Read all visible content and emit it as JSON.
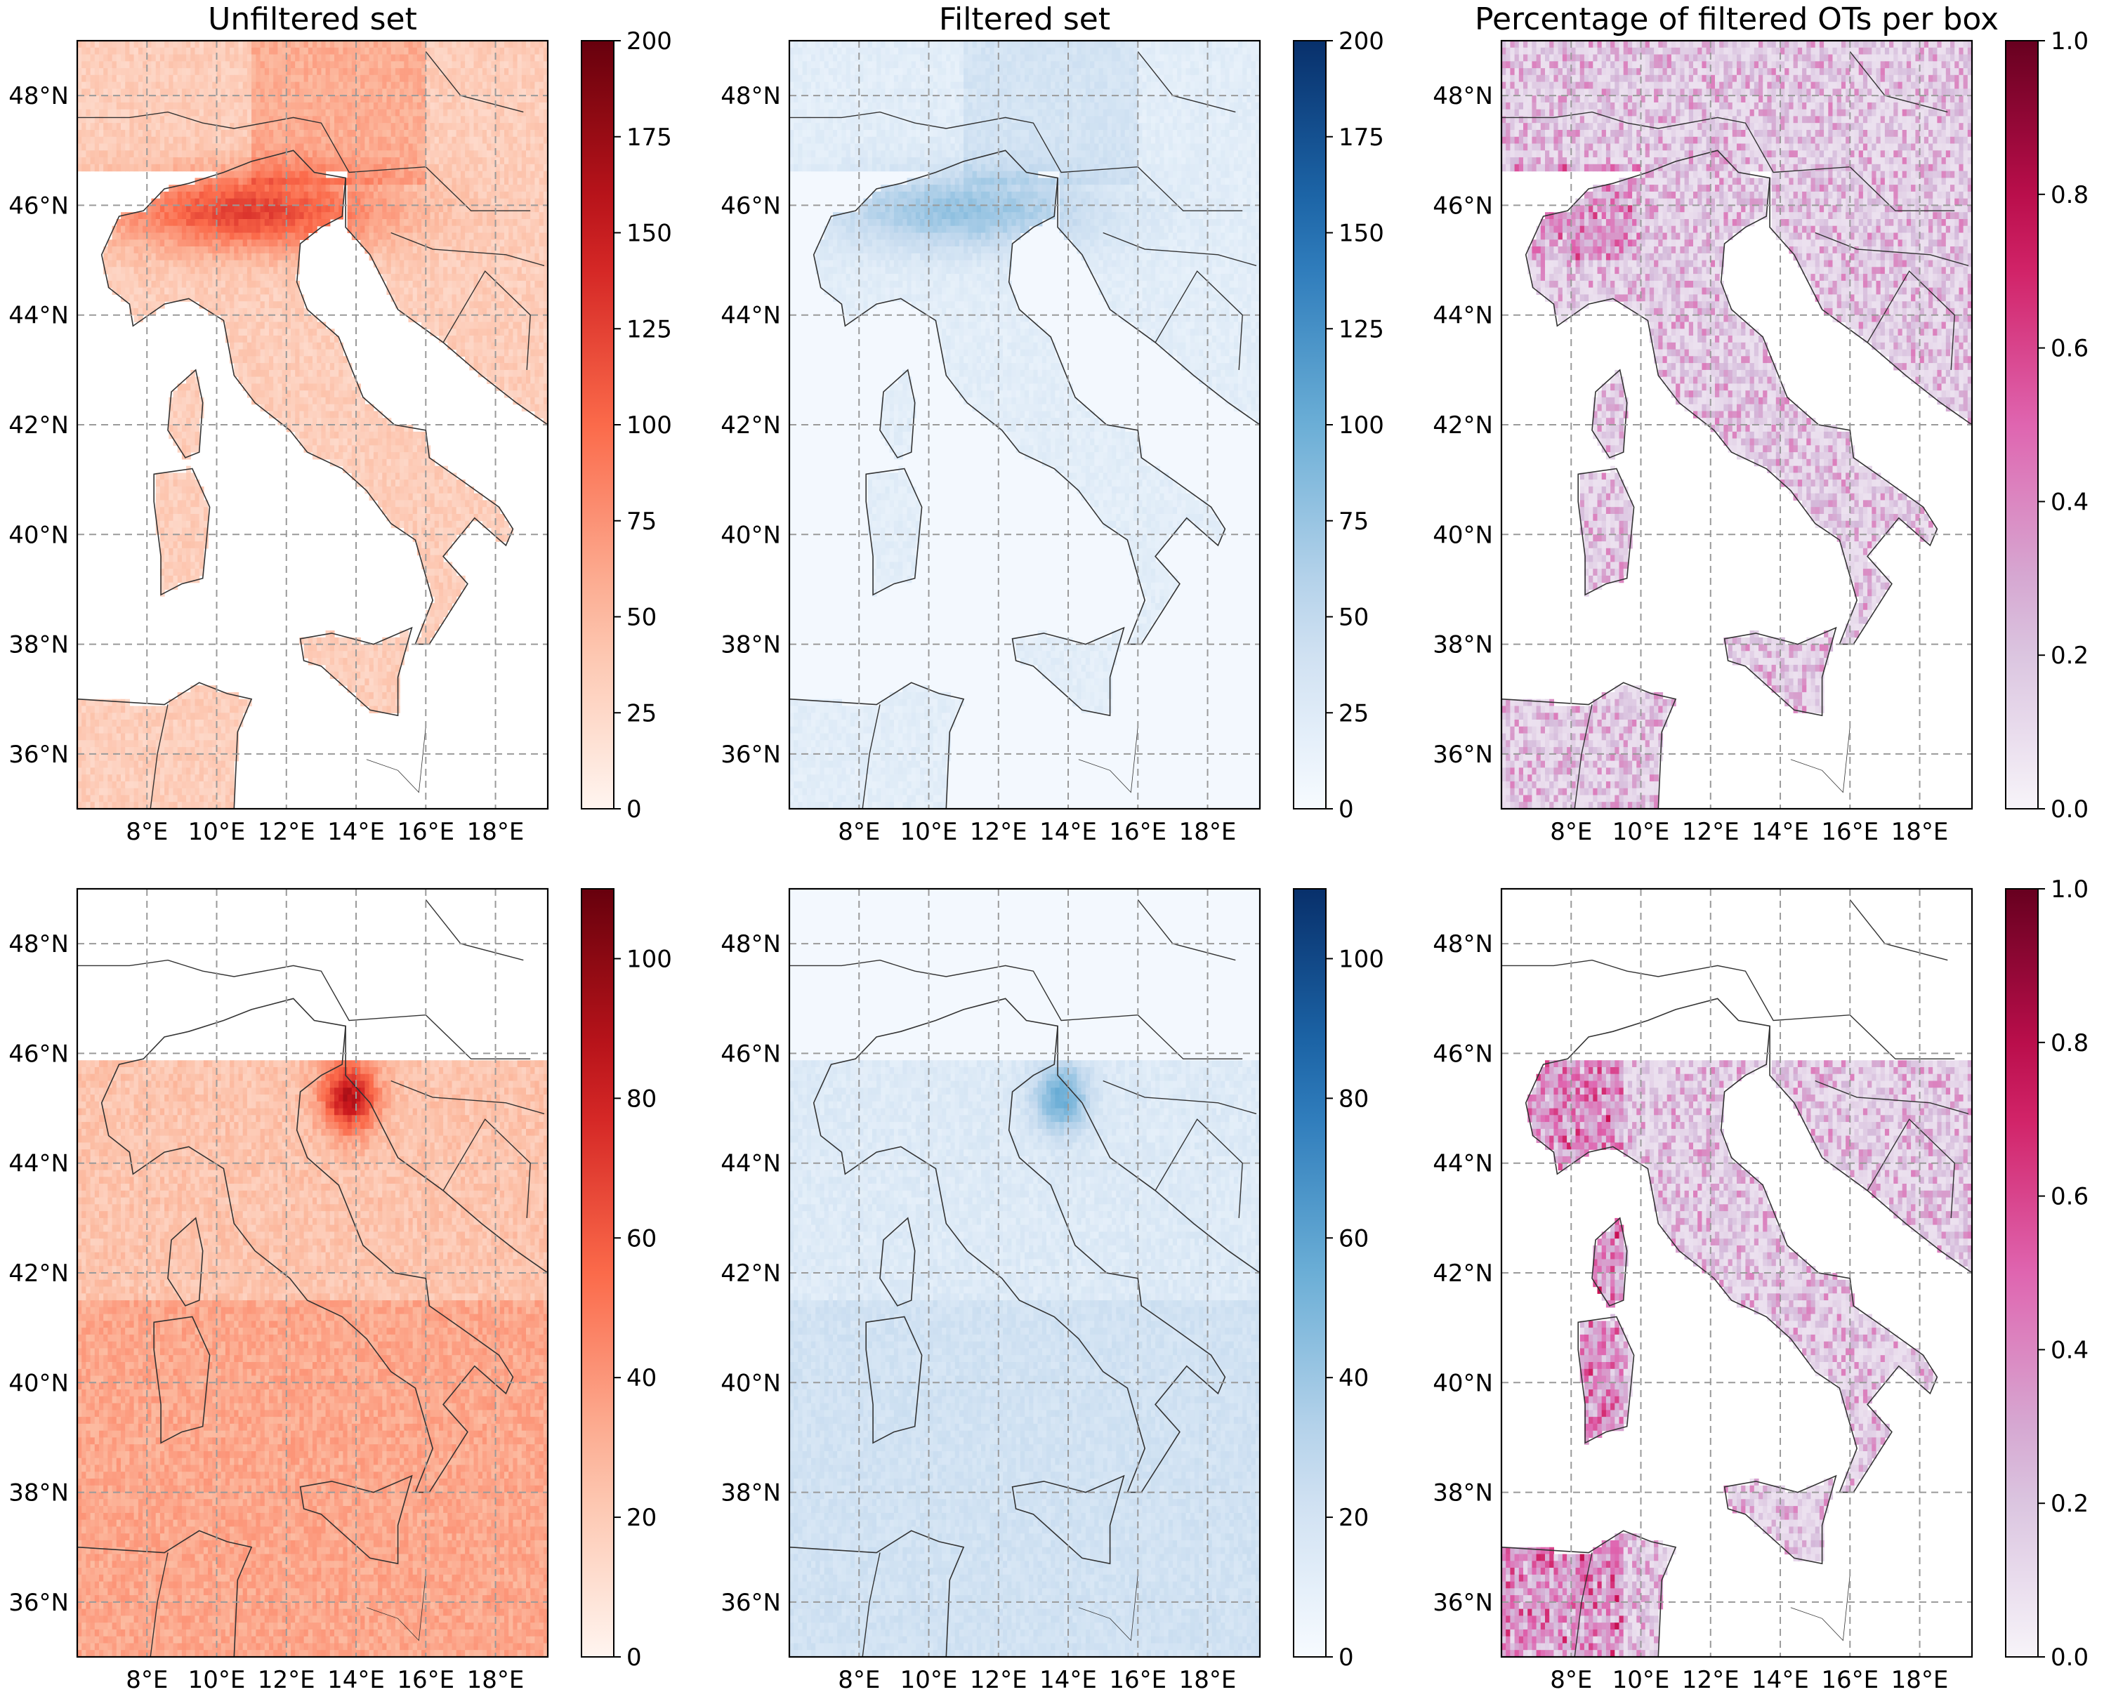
{
  "figure": {
    "rows": [
      {
        "titles": [
          "Unfiltered set",
          "Filtered set",
          "Percentage of filtered OTs per box"
        ],
        "colorbar_ticks": [
          [
            "0",
            "25",
            "50",
            "75",
            "100",
            "125",
            "150",
            "175",
            "200"
          ],
          [
            "0",
            "25",
            "50",
            "75",
            "100",
            "125",
            "150",
            "175",
            "200"
          ],
          [
            "0.0",
            "0.2",
            "0.4",
            "0.6",
            "0.8",
            "1.0"
          ]
        ],
        "colorbar_ranges": [
          [
            0,
            200
          ],
          [
            0,
            200
          ],
          [
            0,
            1
          ]
        ]
      },
      {
        "titles": [
          "",
          "",
          ""
        ],
        "colorbar_ticks": [
          [
            "0",
            "20",
            "40",
            "60",
            "80",
            "100"
          ],
          [
            "0",
            "20",
            "40",
            "60",
            "80",
            "100"
          ],
          [
            "0.0",
            "0.2",
            "0.4",
            "0.6",
            "0.8",
            "1.0"
          ]
        ],
        "colorbar_ranges": [
          [
            0,
            110
          ],
          [
            0,
            110
          ],
          [
            0,
            1
          ]
        ]
      }
    ],
    "colormaps": [
      "Reds",
      "Blues",
      "PuRd"
    ],
    "colormap_hex": {
      "Reds": [
        "#fff5f0",
        "#fcbba1",
        "#fb6a4a",
        "#cb181d",
        "#67000d"
      ],
      "Blues": [
        "#f7fbff",
        "#c6dbef",
        "#6baed6",
        "#2171b5",
        "#08306b"
      ],
      "PuRd": [
        "#f7f4f9",
        "#d4b9da",
        "#df65b0",
        "#ce1256",
        "#67001f"
      ]
    },
    "lat_labels": [
      "48°N",
      "46°N",
      "44°N",
      "42°N",
      "40°N",
      "38°N",
      "36°N"
    ],
    "lon_labels": [
      "8°E",
      "10°E",
      "12°E",
      "14°E",
      "16°E",
      "18°E"
    ],
    "lat_values": [
      48,
      46,
      44,
      42,
      40,
      38,
      36
    ],
    "lon_values": [
      8,
      10,
      12,
      14,
      16,
      18
    ],
    "extent": {
      "lon_min": 6.0,
      "lon_max": 19.5,
      "lat_min": 35.0,
      "lat_max": 49.0
    },
    "gridlines": true
  }
}
